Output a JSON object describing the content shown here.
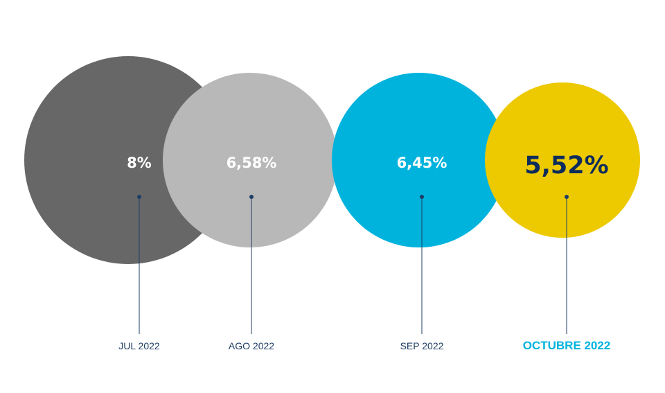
{
  "chart_data": {
    "type": "bubble",
    "title": "",
    "xlabel": "",
    "ylabel": "",
    "grid": false,
    "legend": "none",
    "categories": [
      "JUL 2022",
      "AGO 2022",
      "SEP 2022",
      "OCTUBRE 2022"
    ],
    "values": [
      8,
      6.58,
      6.45,
      5.52
    ],
    "value_labels": [
      "8%",
      "6,58%",
      "6,45%",
      "5,52%"
    ],
    "unit": "%",
    "highlight_index": 3,
    "colors": {
      "bubbles": [
        "#676767",
        "#b8b8b8",
        "#00b3dd",
        "#edc900"
      ],
      "value_text": [
        "#ffffff",
        "#ffffff",
        "#ffffff",
        "#0c2c5c"
      ],
      "leader_lines": "#1f3e64",
      "category_text": "#1f3e64",
      "highlight_category_text": "#00b3dd"
    }
  }
}
